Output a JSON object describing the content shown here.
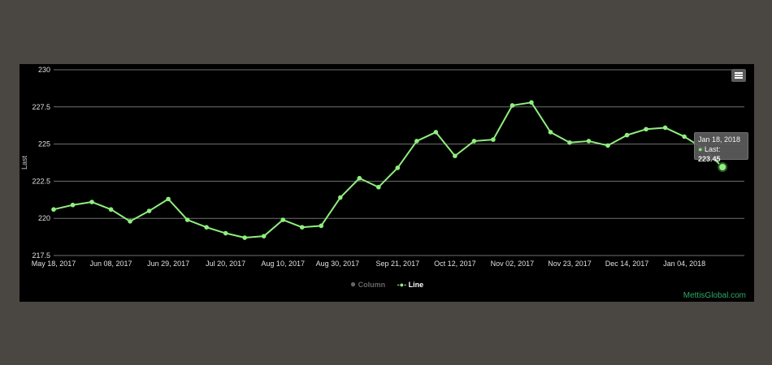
{
  "chart_data": {
    "type": "line",
    "ylabel": "Last",
    "ylim": [
      217.5,
      230
    ],
    "yticks": [
      "217.5",
      "220",
      "222.5",
      "225",
      "227.5",
      "230"
    ],
    "xlim": [
      "2017-05-18",
      "2018-01-26"
    ],
    "xticks": [
      "May 18, 2017",
      "Jun 08, 2017",
      "Jun 29, 2017",
      "Jul 20, 2017",
      "Aug 10, 2017",
      "Aug 30, 2017",
      "Sep 21, 2017",
      "Oct 12, 2017",
      "Nov 02, 2017",
      "Nov 23, 2017",
      "Dec 14, 2017",
      "Jan 04, 2018"
    ],
    "grid": true,
    "series": [
      {
        "name": "Line",
        "color": "#90ee7e",
        "x": [
          "2017-05-18",
          "2017-05-25",
          "2017-06-01",
          "2017-06-08",
          "2017-06-15",
          "2017-06-22",
          "2017-06-29",
          "2017-07-06",
          "2017-07-13",
          "2017-07-20",
          "2017-07-27",
          "2017-08-03",
          "2017-08-10",
          "2017-08-17",
          "2017-08-24",
          "2017-08-31",
          "2017-09-07",
          "2017-09-14",
          "2017-09-21",
          "2017-09-28",
          "2017-10-05",
          "2017-10-12",
          "2017-10-19",
          "2017-10-26",
          "2017-11-02",
          "2017-11-09",
          "2017-11-16",
          "2017-11-23",
          "2017-11-30",
          "2017-12-07",
          "2017-12-14",
          "2017-12-21",
          "2017-12-28",
          "2018-01-04",
          "2018-01-11",
          "2018-01-18"
        ],
        "values": [
          220.6,
          220.9,
          221.1,
          220.6,
          219.8,
          220.5,
          221.3,
          219.9,
          219.4,
          219.0,
          218.7,
          218.8,
          219.9,
          219.4,
          219.5,
          221.4,
          222.7,
          222.1,
          223.4,
          225.2,
          225.8,
          224.2,
          225.2,
          225.3,
          227.6,
          227.8,
          225.8,
          225.1,
          225.2,
          224.9,
          225.6,
          226.0,
          226.1,
          225.5,
          224.7,
          223.45
        ]
      },
      {
        "name": "Column",
        "color": "#666666",
        "values": []
      }
    ],
    "legend": {
      "position": "bottom-center",
      "items": [
        {
          "label": "Column",
          "color": "#666666",
          "hidden": true
        },
        {
          "label": "Line",
          "color": "#90ee7e",
          "hidden": false
        }
      ]
    }
  },
  "tooltip": {
    "date": "Jan 18, 2018",
    "label": "Last:",
    "value": "223.45"
  },
  "credit": "MettisGlobal.com"
}
